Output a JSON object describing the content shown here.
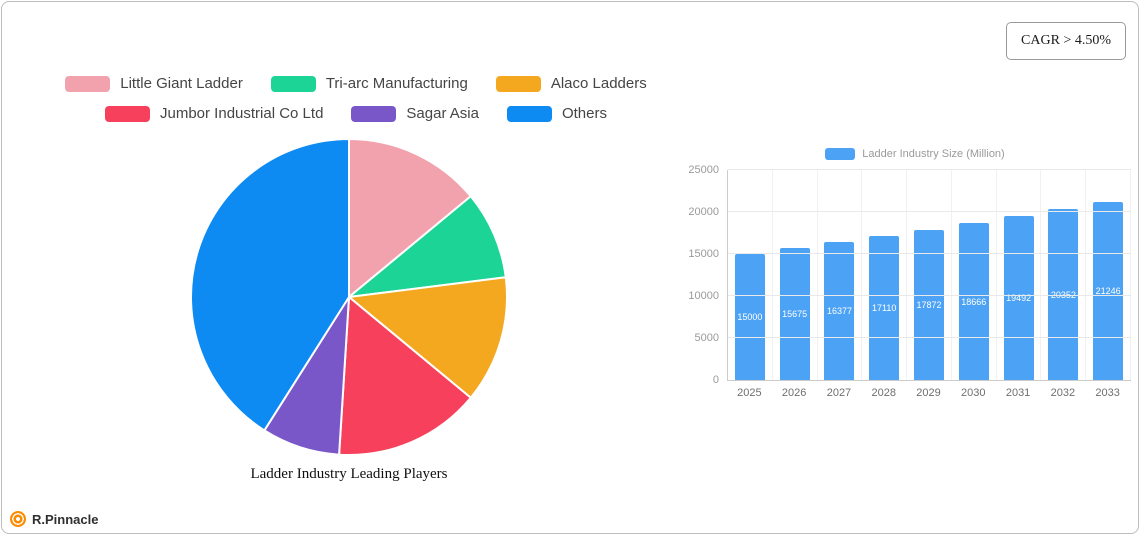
{
  "cagr_badge": "CAGR > 4.50%",
  "logo": {
    "text": "R.Pinnacle"
  },
  "chart_data": [
    {
      "type": "pie",
      "title": "Ladder Industry Leading Players",
      "legend_position": "top",
      "segments": [
        {
          "label": "Little Giant Ladder",
          "value": 14,
          "color": "#F2A2AC"
        },
        {
          "label": "Tri-arc Manufacturing",
          "value": 9,
          "color": "#1CD495"
        },
        {
          "label": "Alaco Ladders",
          "value": 13,
          "color": "#F3A81F"
        },
        {
          "label": "Jumbor Industrial Co  Ltd",
          "value": 15,
          "color": "#F7415C"
        },
        {
          "label": "Sagar Asia",
          "value": 8,
          "color": "#7A57C9"
        },
        {
          "label": "Others",
          "value": 41,
          "color": "#0D8BF2"
        }
      ]
    },
    {
      "type": "bar",
      "series_name": "Ladder Industry Size (Million)",
      "bar_color": "#4CA2F5",
      "categories": [
        "2025",
        "2026",
        "2027",
        "2028",
        "2029",
        "2030",
        "2031",
        "2032",
        "2033"
      ],
      "values": [
        15000,
        15675,
        16377,
        17110,
        17872,
        18666,
        19492,
        20352,
        21246
      ],
      "ylim": [
        0,
        25000
      ],
      "yticks": [
        0,
        5000,
        10000,
        15000,
        20000,
        25000
      ],
      "grid": true,
      "legend_position": "top"
    }
  ]
}
